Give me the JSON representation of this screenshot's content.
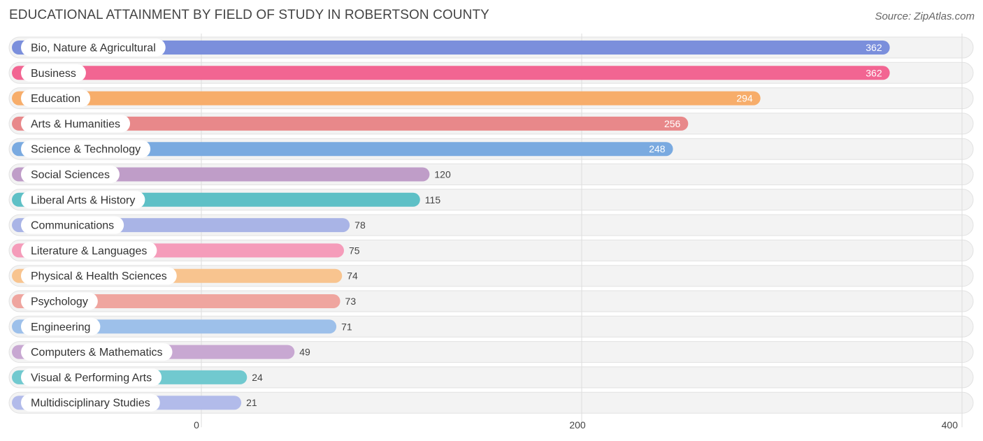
{
  "chart_data": {
    "type": "bar",
    "orientation": "horizontal",
    "title": "EDUCATIONAL ATTAINMENT BY FIELD OF STUDY IN ROBERTSON COUNTY",
    "source": "Source: ZipAtlas.com",
    "xlabel": "",
    "ylabel": "",
    "xlim": [
      0,
      400
    ],
    "xticks": [
      0,
      200,
      400
    ],
    "grid": true,
    "categories": [
      "Bio, Nature & Agricultural",
      "Business",
      "Education",
      "Arts & Humanities",
      "Science & Technology",
      "Social Sciences",
      "Liberal Arts & History",
      "Communications",
      "Literature & Languages",
      "Physical & Health Sciences",
      "Psychology",
      "Engineering",
      "Computers & Mathematics",
      "Visual & Performing Arts",
      "Multidisciplinary Studies"
    ],
    "values": [
      362,
      362,
      294,
      256,
      248,
      120,
      115,
      78,
      75,
      74,
      73,
      71,
      49,
      24,
      21
    ],
    "colors": [
      "#7b8fdc",
      "#f26592",
      "#f7ad6a",
      "#e8888a",
      "#7aaae0",
      "#bf9dc8",
      "#5ec0c6",
      "#a9b4e6",
      "#f59cba",
      "#f8c48f",
      "#efa59f",
      "#9dc0ea",
      "#c8a8d2",
      "#71c9cf",
      "#b2bbea"
    ]
  }
}
